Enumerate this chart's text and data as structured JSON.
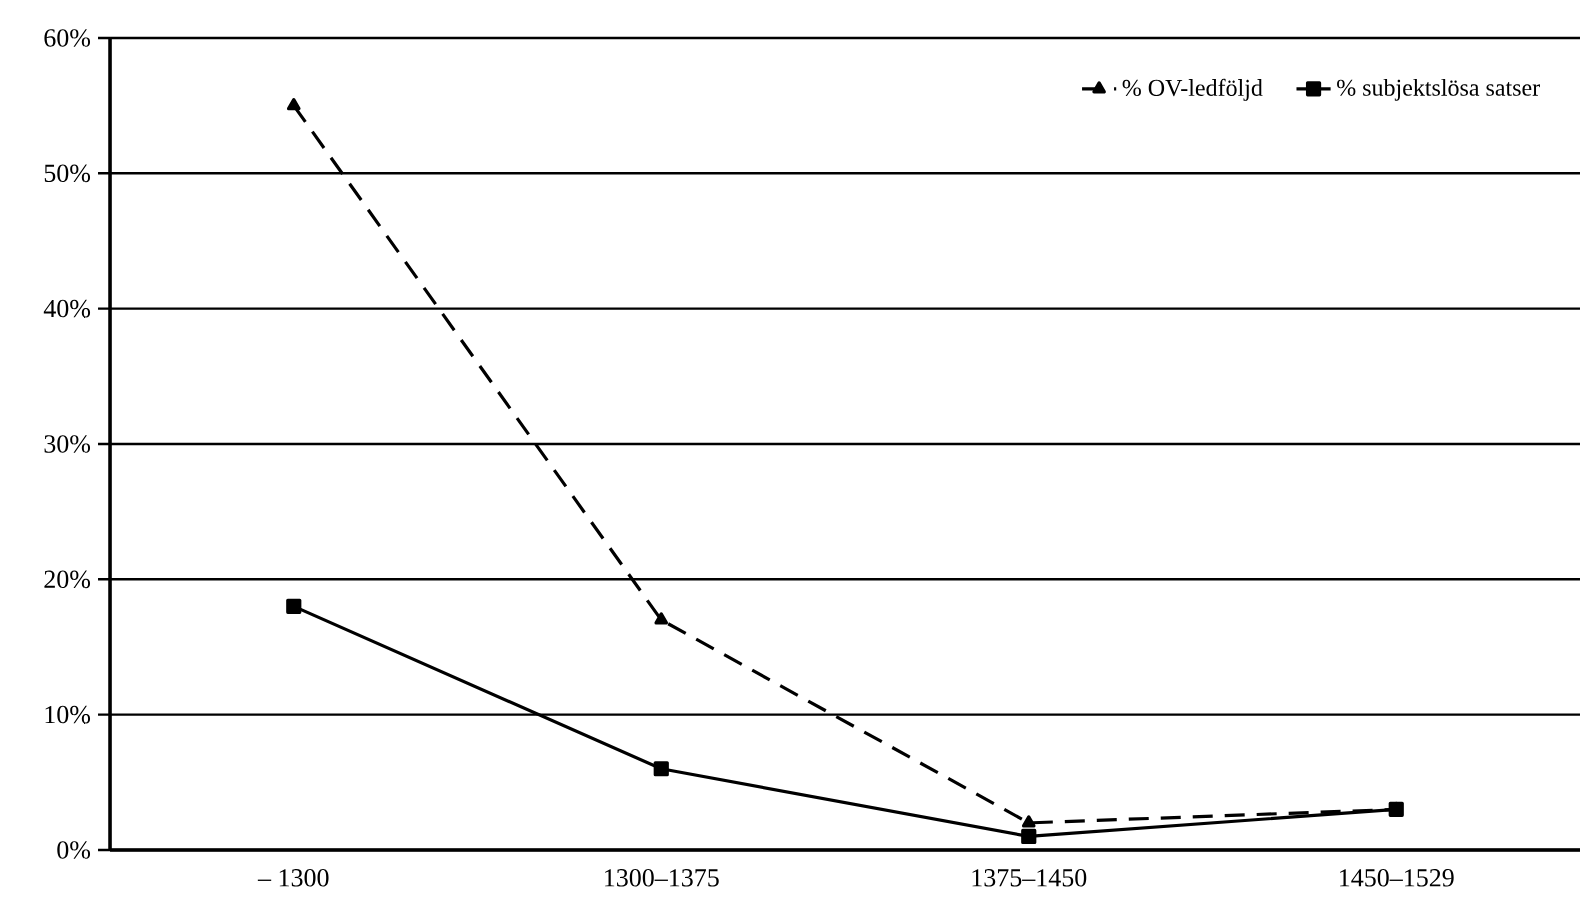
{
  "chart_data": {
    "type": "line",
    "categories": [
      "– 1300",
      "1300–1375",
      "1375–1450",
      "1450–1529"
    ],
    "series": [
      {
        "name": "% OV-ledföljd",
        "color": "#000000",
        "values": [
          55,
          17,
          2,
          3
        ],
        "marker": "triangle",
        "line_style": "dashed"
      },
      {
        "name": "% subjektslösa satser",
        "color": "#000000",
        "values": [
          18,
          6,
          1,
          3
        ],
        "marker": "square",
        "line_style": "solid"
      }
    ],
    "ylim": [
      0,
      60
    ],
    "yticks": [
      {
        "value": 0,
        "label": "0%"
      },
      {
        "value": 10,
        "label": "10%"
      },
      {
        "value": 20,
        "label": "20%"
      },
      {
        "value": 30,
        "label": "30%"
      },
      {
        "value": 40,
        "label": "40%"
      },
      {
        "value": 50,
        "label": "50%"
      },
      {
        "value": 60,
        "label": "60%"
      }
    ],
    "grid": "y",
    "legend": "top right"
  }
}
